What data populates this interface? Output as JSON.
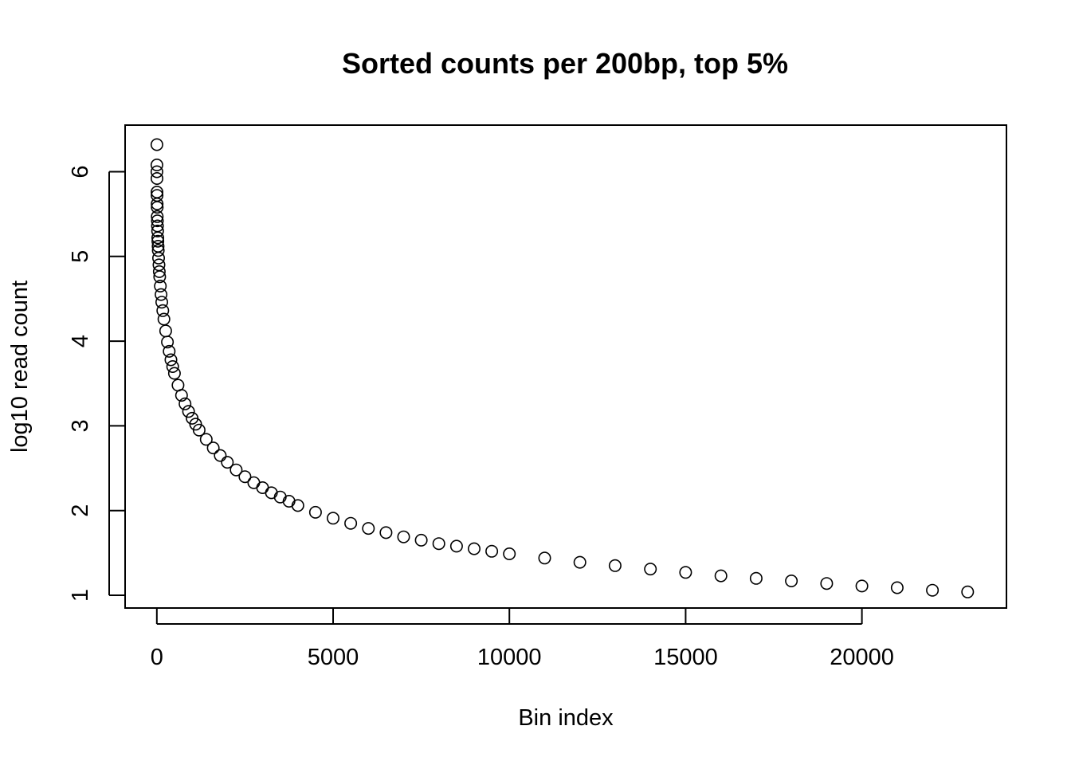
{
  "chart_data": {
    "type": "scatter",
    "title": "Sorted counts per 200bp, top 5%",
    "xlabel": "Bin index",
    "ylabel": "log10 read count",
    "xlim": [
      -900,
      24100
    ],
    "ylim": [
      0.85,
      6.55
    ],
    "x_ticks": [
      0,
      5000,
      10000,
      15000,
      20000
    ],
    "x_tick_labels": [
      "0",
      "5000",
      "10000",
      "15000",
      "20000"
    ],
    "y_ticks": [
      1,
      2,
      3,
      4,
      5,
      6
    ],
    "y_tick_labels": [
      "1",
      "2",
      "3",
      "4",
      "5",
      "6"
    ],
    "grid": false,
    "marker": "open-circle",
    "color": "#000000",
    "series": [
      {
        "x": [
          1,
          2,
          3,
          4,
          5,
          6,
          8,
          10,
          12,
          15,
          18,
          22,
          26,
          30,
          35,
          40,
          50,
          60,
          70,
          80,
          100,
          120,
          140,
          170,
          200,
          250,
          300,
          350,
          400,
          450,
          500,
          600,
          700,
          800,
          900,
          1000,
          1100,
          1200,
          1400,
          1600,
          1800,
          2000,
          2250,
          2500,
          2750,
          3000,
          3250,
          3500,
          3750,
          4000,
          4500,
          5000,
          5500,
          6000,
          6500,
          7000,
          7500,
          8000,
          8500,
          9000,
          9500,
          10000,
          11000,
          12000,
          13000,
          14000,
          15000,
          16000,
          17000,
          18000,
          19000,
          20000,
          21000,
          22000,
          23000
        ],
        "y": [
          6.32,
          6.08,
          6.0,
          5.92,
          5.76,
          5.72,
          5.62,
          5.58,
          5.47,
          5.42,
          5.36,
          5.3,
          5.22,
          5.18,
          5.12,
          5.07,
          4.98,
          4.9,
          4.82,
          4.76,
          4.65,
          4.55,
          4.46,
          4.36,
          4.26,
          4.12,
          3.99,
          3.88,
          3.78,
          3.7,
          3.62,
          3.48,
          3.36,
          3.26,
          3.17,
          3.09,
          3.02,
          2.95,
          2.84,
          2.74,
          2.65,
          2.57,
          2.48,
          2.4,
          2.33,
          2.27,
          2.21,
          2.16,
          2.11,
          2.06,
          1.98,
          1.91,
          1.85,
          1.79,
          1.74,
          1.69,
          1.65,
          1.61,
          1.58,
          1.55,
          1.52,
          1.49,
          1.44,
          1.39,
          1.35,
          1.31,
          1.27,
          1.23,
          1.2,
          1.17,
          1.14,
          1.11,
          1.09,
          1.06,
          1.04
        ]
      }
    ]
  }
}
